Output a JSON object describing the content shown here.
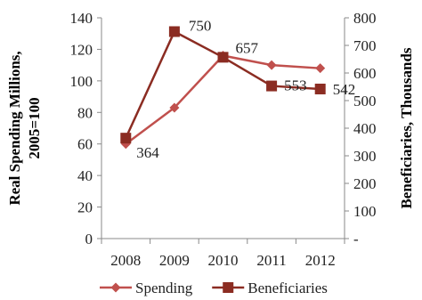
{
  "chart_data": {
    "type": "line",
    "categories": [
      "2008",
      "2009",
      "2010",
      "2011",
      "2012"
    ],
    "y_left": {
      "label": "Real Spending Millions, 2005=100",
      "label_lines": [
        "Real Spending Millions,",
        "2005=100"
      ],
      "lim": [
        0,
        140
      ],
      "ticks": [
        0,
        20,
        40,
        60,
        80,
        100,
        120,
        140
      ]
    },
    "y_right": {
      "label": "Beneficiaries, Thousands",
      "lim": [
        0,
        800
      ],
      "ticks": [
        100,
        200,
        300,
        400,
        500,
        600,
        700,
        800
      ],
      "zero_label": "-"
    },
    "series": [
      {
        "name": "Spending",
        "axis": "left",
        "color": "#c0504d",
        "marker": "diamond",
        "values": [
          60,
          83,
          116,
          110,
          108
        ]
      },
      {
        "name": "Beneficiaries",
        "axis": "right",
        "color": "#8b2c22",
        "marker": "square",
        "values": [
          364,
          750,
          657,
          553,
          542
        ],
        "labels": [
          "364",
          "750",
          "657",
          "553",
          "542"
        ]
      }
    ],
    "legend": "bottom",
    "grid": false
  }
}
